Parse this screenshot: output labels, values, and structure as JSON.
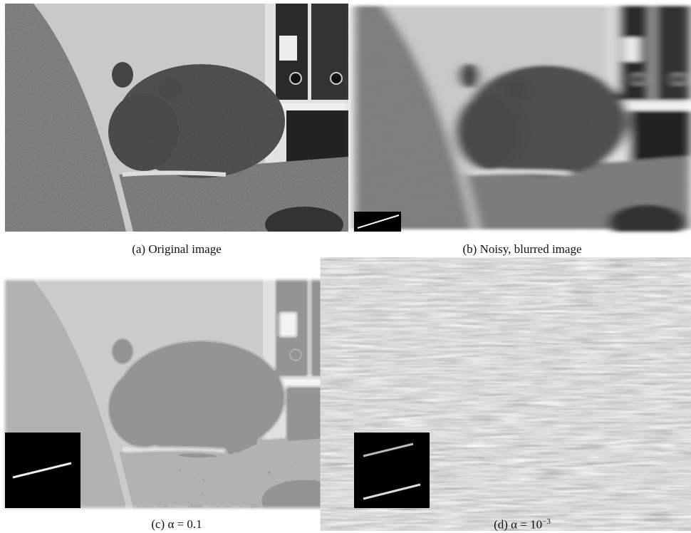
{
  "figure": {
    "panels": [
      {
        "label": "(a)",
        "caption": "Original image"
      },
      {
        "label": "(b)",
        "caption": "Noisy, blurred image"
      },
      {
        "label": "(c)",
        "caption": "α = 0.1"
      },
      {
        "label": "(d)",
        "caption": "α = 10",
        "superscript": "−3"
      }
    ]
  }
}
